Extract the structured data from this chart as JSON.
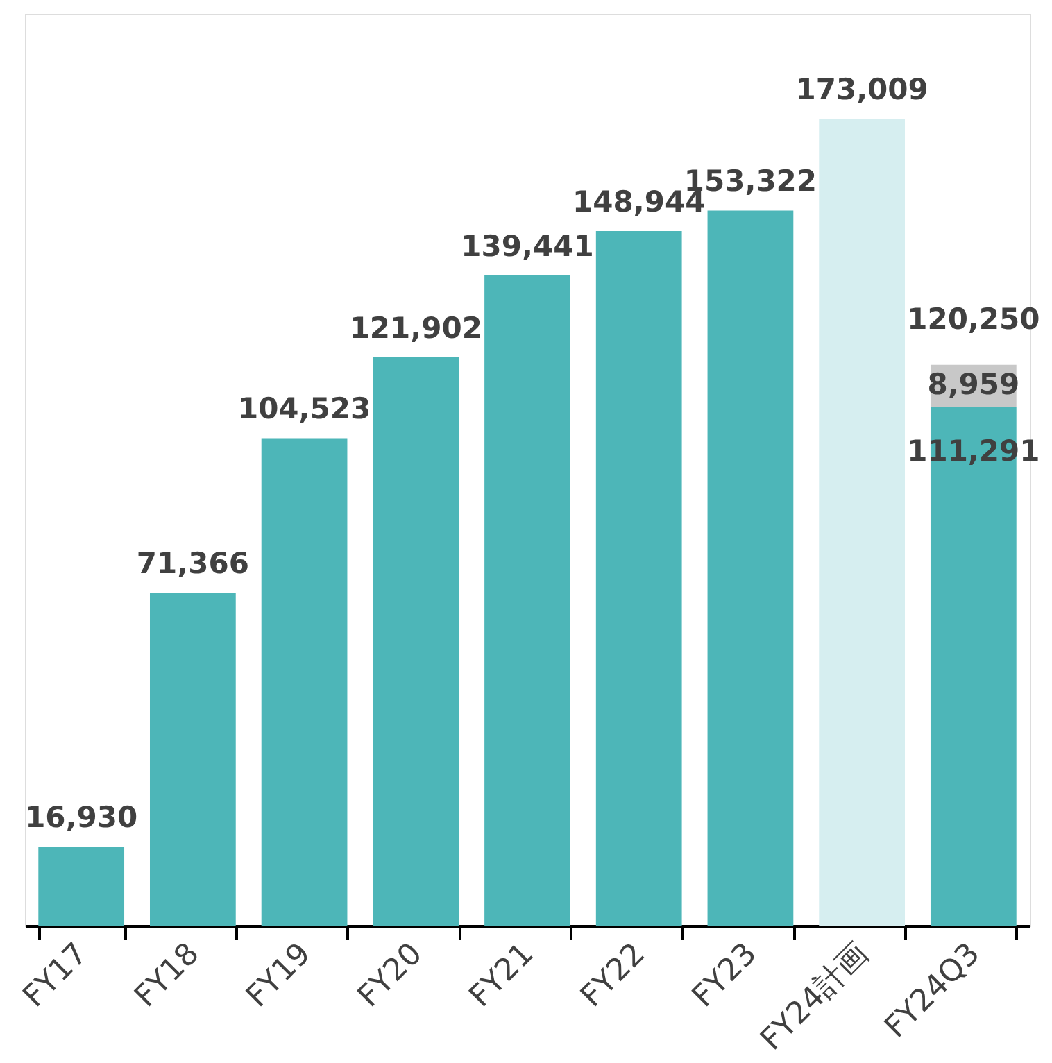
{
  "chart_data": {
    "type": "bar",
    "stacked": true,
    "categories": [
      "FY17",
      "FY18",
      "FY19",
      "FY20",
      "FY21",
      "FY22",
      "FY23",
      "FY24計画",
      "FY24Q3"
    ],
    "series": [
      {
        "colors": [
          "#4db6b8",
          "#4db6b8",
          "#4db6b8",
          "#4db6b8",
          "#4db6b8",
          "#4db6b8",
          "#4db6b8",
          "#d6eef0",
          "#4db6b8"
        ],
        "values": [
          16930,
          71366,
          104523,
          121902,
          139441,
          148944,
          153322,
          173009,
          111291
        ],
        "value_labels": [
          "16,930",
          "71,366",
          "104,523",
          "121,902",
          "139,441",
          "148,944",
          "153,322",
          "173,009",
          "111,291"
        ]
      },
      {
        "color": "#c8c8c8",
        "values": [
          null,
          null,
          null,
          null,
          null,
          null,
          null,
          null,
          8959
        ],
        "value_labels": [
          null,
          null,
          null,
          null,
          null,
          null,
          null,
          null,
          "8,959"
        ]
      }
    ],
    "totals": [
      null,
      null,
      null,
      null,
      null,
      null,
      null,
      null,
      "120,250"
    ],
    "grid": false
  }
}
